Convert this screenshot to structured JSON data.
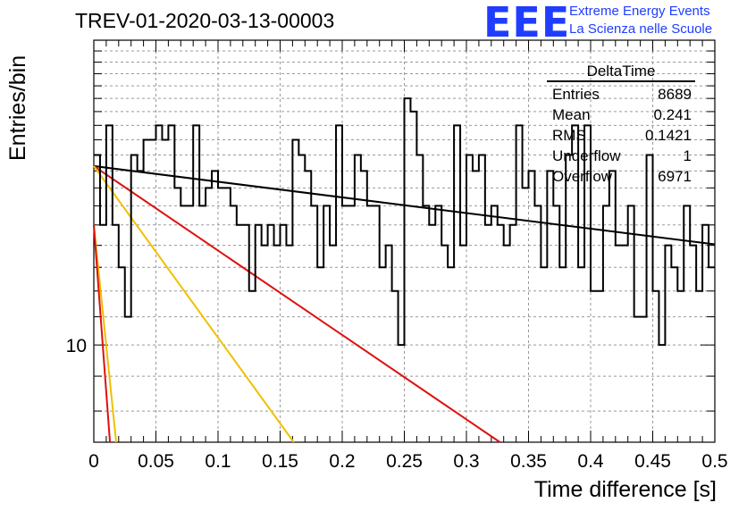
{
  "chart_data": {
    "type": "line",
    "title": "TREV-01-2020-03-13-00003",
    "xlabel": "Time difference [s]",
    "ylabel": "Entries/bin",
    "xlim": [
      0,
      0.5
    ],
    "ylim_log": [
      7.2,
      28
    ],
    "ylog": true,
    "grid": true,
    "x_ticks": [
      "0",
      "0.05",
      "0.1",
      "0.15",
      "0.2",
      "0.25",
      "0.3",
      "0.35",
      "0.4",
      "0.45",
      "0.5"
    ],
    "y_tick_labels": [
      "10"
    ],
    "histogram": {
      "bin_width": 0.005,
      "values": [
        19,
        15,
        21,
        15,
        13,
        11,
        19,
        18,
        20,
        20,
        21,
        20,
        21,
        17,
        16,
        16,
        21,
        16,
        17,
        18,
        17,
        17,
        16,
        15,
        15,
        12,
        15,
        14,
        15,
        14,
        15,
        14,
        20,
        19,
        18,
        16,
        13,
        16,
        14,
        21,
        16,
        16,
        19,
        18,
        16,
        16,
        13,
        14,
        12,
        10,
        23,
        22,
        19,
        16,
        15,
        16,
        14,
        13,
        21,
        14,
        19,
        18,
        19,
        15,
        16,
        15,
        14,
        15,
        21,
        17,
        18,
        16,
        13,
        18,
        16,
        13,
        19,
        21,
        13,
        21,
        12,
        12,
        16,
        18,
        14,
        14,
        16,
        11,
        11,
        19,
        12,
        10,
        14,
        13,
        12,
        16,
        14,
        12,
        15,
        13
      ]
    },
    "fit_lines": [
      {
        "color": "#000000",
        "points": [
          [
            0,
            18.3
          ],
          [
            0.5,
            14.05
          ]
        ]
      },
      {
        "color": "#dd1111",
        "points": [
          [
            0,
            18.3
          ],
          [
            0.327,
            7.2
          ]
        ]
      },
      {
        "color": "#f0c000",
        "points": [
          [
            0,
            18.3
          ],
          [
            0.161,
            7.2
          ]
        ]
      },
      {
        "color": "#f0c000",
        "points": [
          [
            0,
            15.0
          ],
          [
            0.018,
            7.2
          ]
        ]
      },
      {
        "color": "#dd1111",
        "points": [
          [
            0,
            15.0
          ],
          [
            0.013,
            7.2
          ]
        ]
      }
    ],
    "stats": {
      "name": "DeltaTime",
      "rows": [
        {
          "label": "Entries",
          "value": "8689"
        },
        {
          "label": "Mean",
          "value": "0.241"
        },
        {
          "label": "RMS",
          "value": "0.1421"
        },
        {
          "label": "Underflow",
          "value": "1"
        },
        {
          "label": "Overflow",
          "value": "6971"
        }
      ]
    }
  },
  "logo": {
    "mark": "EEE",
    "line1": "Extreme Energy Events",
    "line2": "La Scienza nelle Scuole"
  }
}
